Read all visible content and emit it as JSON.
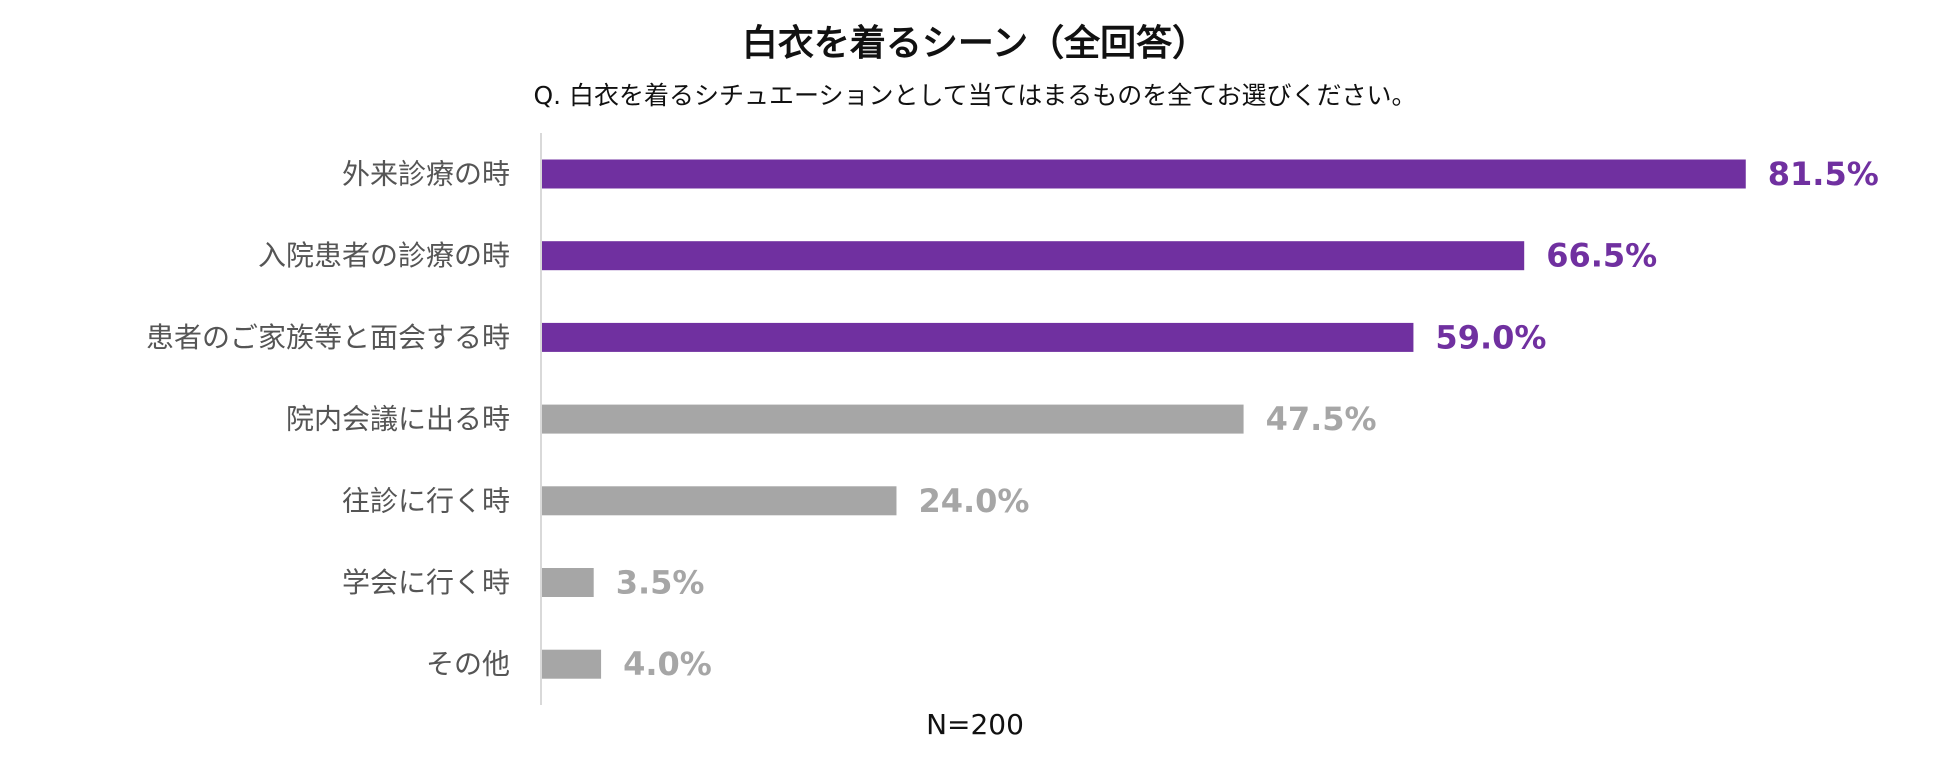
{
  "chart_data": {
    "type": "bar",
    "orientation": "horizontal",
    "title": "白衣を着るシーン（全回答）",
    "subtitle": "Q. 白衣を着るシチュエーションとして当てはまるものを全てお選びください。",
    "categories": [
      "外来診療の時",
      "入院患者の診療の時",
      "患者のご家族等と面会する時",
      "院内会議に出る時",
      "往診に行く時",
      "学会に行く時",
      "その他"
    ],
    "values": [
      81.5,
      66.5,
      59.0,
      47.5,
      24.0,
      3.5,
      4.0
    ],
    "value_labels": [
      "81.5%",
      "66.5%",
      "59.0%",
      "47.5%",
      "24.0%",
      "3.5%",
      "4.0%"
    ],
    "highlight_count": 3,
    "unit": "%",
    "xlim": [
      0,
      100
    ],
    "grid": false,
    "legend": "none",
    "note": "N=200",
    "colors": {
      "highlight": "#7030a0",
      "other": "#a6a6a6",
      "axis": "#d9d9d9",
      "category_text": "#555555"
    }
  }
}
